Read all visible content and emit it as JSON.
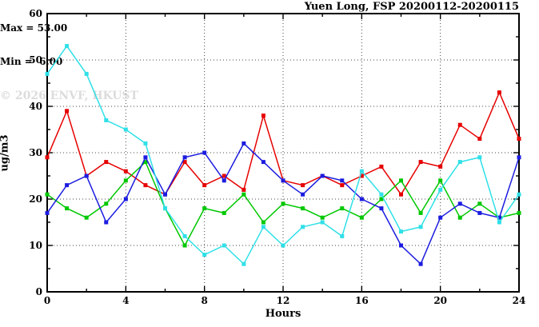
{
  "header": {
    "title": "Yuen Long, FSP 20200112-20200115"
  },
  "annotation": {
    "max_label": "Max = 53.00",
    "min_label": "Min =  6.00"
  },
  "watermark": "© 2026 ENVF, HKUST",
  "chart_data": {
    "type": "line",
    "title": "Yuen Long, FSP 20200112-20200115",
    "xlabel": "Hours",
    "ylabel": "ug/m3",
    "xlim": [
      0,
      24
    ],
    "ylim": [
      0,
      60
    ],
    "x_major_ticks": [
      0,
      4,
      8,
      12,
      16,
      20,
      24
    ],
    "x_minor_step": 2,
    "y_major_ticks": [
      0,
      10,
      20,
      30,
      40,
      50,
      60
    ],
    "y_minor_step": 5,
    "grid": {
      "x_at": [
        4,
        8,
        12,
        16,
        20
      ],
      "y_at": [
        10,
        20,
        30,
        40,
        50
      ]
    },
    "legend_position": "none",
    "x": [
      0,
      1,
      2,
      3,
      4,
      5,
      6,
      7,
      8,
      9,
      10,
      11,
      12,
      13,
      14,
      15,
      16,
      17,
      18,
      19,
      20,
      21,
      22,
      23,
      24
    ],
    "series": [
      {
        "name": "red",
        "color": "#e60000",
        "values": [
          29,
          39,
          25,
          28,
          26,
          23,
          21,
          28,
          23,
          25,
          22,
          38,
          24,
          23,
          25,
          23,
          25,
          27,
          21,
          28,
          27,
          36,
          33,
          43,
          33
        ]
      },
      {
        "name": "green",
        "color": "#00c800",
        "values": [
          21,
          18,
          16,
          19,
          24,
          28,
          18,
          10,
          18,
          17,
          21,
          15,
          19,
          18,
          16,
          18,
          16,
          20,
          24,
          17,
          24,
          16,
          19,
          16,
          17
        ]
      },
      {
        "name": "blue",
        "color": "#1c1ce0",
        "values": [
          17,
          23,
          25,
          15,
          20,
          29,
          21,
          29,
          30,
          24,
          32,
          28,
          24,
          21,
          25,
          24,
          20,
          18,
          10,
          6,
          16,
          19,
          17,
          16,
          29
        ]
      },
      {
        "name": "cyan",
        "color": "#2fe0e8",
        "values": [
          47,
          53,
          47,
          37,
          35,
          32,
          18,
          12,
          8,
          10,
          6,
          14,
          10,
          14,
          15,
          12,
          26,
          21,
          13,
          14,
          22,
          28,
          29,
          15,
          21
        ]
      }
    ],
    "annotations": [
      "Max = 53.00",
      "Min =  6.00"
    ]
  }
}
